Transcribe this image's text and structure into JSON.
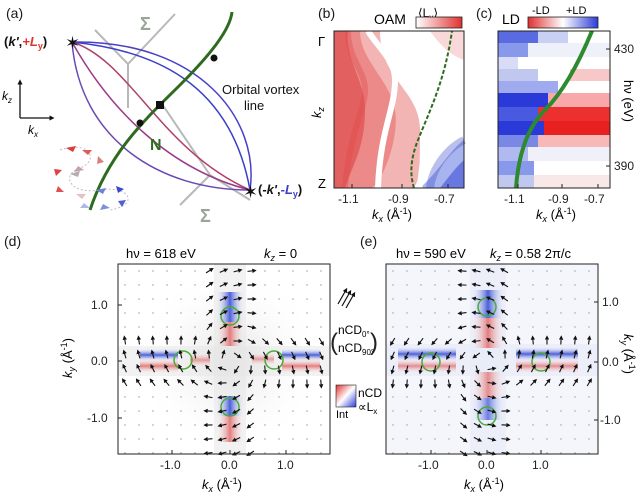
{
  "panels": {
    "a": {
      "label": "(a)",
      "sigma": "Σ",
      "n_point": "N",
      "vortex_line": "Orbital vortex",
      "vortex_line2": "line",
      "kz": "k",
      "kz_sub": "z",
      "kx": "k",
      "kx_sub": "x",
      "plus_label_pre": "(",
      "plus_k": "k'",
      "plus_label_mid": ",",
      "plus_L": "+L",
      "plus_L_sub": "y",
      "plus_label_post": ")",
      "minus_label_pre": "(-",
      "minus_k": "k'",
      "minus_label_mid": ",",
      "minus_L": "-L",
      "minus_L_sub": "y",
      "minus_label_post": ")",
      "colors": {
        "plus": "#e0342f",
        "minus": "#3a3fc9",
        "vortex": "#2e6b1f",
        "sigma": "#b8b8b8"
      }
    },
    "b": {
      "label": "(b)",
      "title": "OAM",
      "colorbar_label": "⟨L",
      "colorbar_sub": "y",
      "colorbar_close": "⟩",
      "y_top": "Γ",
      "y_bottom": "Z",
      "ylabel": "k",
      "ylabel_sub": "z",
      "xlabel": "k",
      "xlabel_sub": "x",
      "xlabel_unit": " (Å",
      "xlabel_exp": "-1",
      "xlabel_close": ")",
      "xticks": [
        "-1.1",
        "-0.9",
        "-0.7"
      ]
    },
    "c": {
      "label": "(c)",
      "title": "LD",
      "colorbar_minus": "-LD",
      "colorbar_plus": "+LD",
      "yticks": [
        "430",
        "390"
      ],
      "ylabel": "hν (eV)",
      "xlabel": "k",
      "xlabel_sub": "x",
      "xlabel_unit": " (Å",
      "xlabel_exp": "-1",
      "xlabel_close": ")",
      "xticks": [
        "-1.1",
        "-0.9",
        "-0.7"
      ]
    },
    "d": {
      "label": "(d)",
      "hv": "hν = 618 eV",
      "kz": "k",
      "kz_sub": "z",
      "kz_value": " = 0",
      "ylabel": "k",
      "ylabel_sub": "y",
      "ylabel_unit": " (Å",
      "ylabel_exp": "-1",
      "ylabel_close": ")",
      "xlabel": "k",
      "xlabel_sub": "x",
      "xlabel_unit": " (Å",
      "xlabel_exp": "-1",
      "xlabel_close": ")",
      "yticks": [
        "1.0",
        "0.0",
        "-1.0"
      ],
      "xticks": [
        "-1.0",
        "0.0",
        "1.0"
      ]
    },
    "e": {
      "label": "(e)",
      "hv": "hν = 590 eV",
      "kz": "k",
      "kz_sub": "z",
      "kz_value": " = 0.58 2π/c",
      "ylabel": "k",
      "ylabel_sub": "y",
      "ylabel_unit": " (Å",
      "ylabel_exp": "-1",
      "ylabel_close": ")",
      "xlabel": "k",
      "xlabel_sub": "x",
      "xlabel_unit": " (Å",
      "xlabel_exp": "-1",
      "xlabel_close": ")",
      "yticks": [
        "1.0",
        "0.0",
        "-1.0"
      ],
      "xticks": [
        "-1.0",
        "0.0",
        "1.0"
      ]
    },
    "legend": {
      "ncd0": "nCD",
      "ncd0_sub": "0°",
      "ncd90": "nCD",
      "ncd90_sub": "90°",
      "ncd_label": "nCD",
      "prop": "∝L",
      "prop_sub": "x",
      "int_label": "Int"
    }
  }
}
